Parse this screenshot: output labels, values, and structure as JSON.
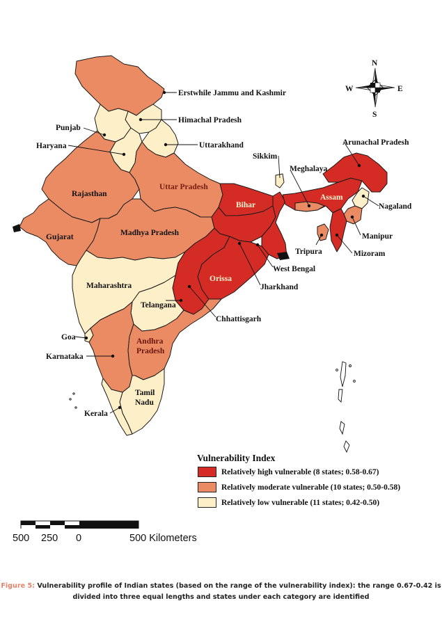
{
  "colors": {
    "high": "#d42b25",
    "moderate": "#ea8b63",
    "low": "#fdefc8",
    "caption_accent": "#e0836a"
  },
  "map": {
    "compass": {
      "n": "N",
      "s": "S",
      "e": "E",
      "w": "W"
    },
    "states": [
      {
        "name": "Erstwhile Jammu and Kashmir",
        "category": "moderate"
      },
      {
        "name": "Himachal Pradesh",
        "category": "low"
      },
      {
        "name": "Punjab",
        "category": "low"
      },
      {
        "name": "Haryana",
        "category": "low"
      },
      {
        "name": "Uttarakhand",
        "category": "low"
      },
      {
        "name": "Rajasthan",
        "category": "moderate"
      },
      {
        "name": "Uttar Pradesh",
        "category": "moderate"
      },
      {
        "name": "Bihar",
        "category": "high"
      },
      {
        "name": "Sikkim",
        "category": "low"
      },
      {
        "name": "Arunachal Pradesh",
        "category": "high"
      },
      {
        "name": "Meghalaya",
        "category": "moderate"
      },
      {
        "name": "Assam",
        "category": "high"
      },
      {
        "name": "Nagaland",
        "category": "low"
      },
      {
        "name": "Manipur",
        "category": "moderate"
      },
      {
        "name": "Mizoram",
        "category": "high"
      },
      {
        "name": "Tripura",
        "category": "moderate"
      },
      {
        "name": "Gujarat",
        "category": "moderate"
      },
      {
        "name": "Madhya Pradesh",
        "category": "moderate"
      },
      {
        "name": "West Bengal",
        "category": "high"
      },
      {
        "name": "Jharkhand",
        "category": "high"
      },
      {
        "name": "Orissa",
        "category": "high"
      },
      {
        "name": "Chhattisgarh",
        "category": "high"
      },
      {
        "name": "Maharashtra",
        "category": "low"
      },
      {
        "name": "Telangana",
        "category": "low"
      },
      {
        "name": "Goa",
        "category": "low"
      },
      {
        "name": "Karnataka",
        "category": "moderate"
      },
      {
        "name": "Andhra Pradesh",
        "category": "moderate"
      },
      {
        "name": "Tamil Nadu",
        "category": "low"
      },
      {
        "name": "Kerala",
        "category": "low"
      }
    ],
    "labels": {
      "jk": "Erstwhile Jammu and Kashmir",
      "hp": "Himachal Pradesh",
      "punjab": "Punjab",
      "haryana": "Haryana",
      "uk": "Uttarakhand",
      "rajasthan": "Rajasthan",
      "up": "Uttar Pradesh",
      "bihar": "Bihar",
      "sikkim": "Sikkim",
      "arunachal": "Arunachal Pradesh",
      "meghalaya": "Meghalaya",
      "assam": "Assam",
      "nagaland": "Nagaland",
      "manipur": "Manipur",
      "mizoram": "Mizoram",
      "tripura": "Tripura",
      "gujarat": "Gujarat",
      "mp": "Madhya Pradesh",
      "wb": "West Bengal",
      "jharkhand": "Jharkhand",
      "orissa": "Orissa",
      "chhattisgarh": "Chhattisgarh",
      "maharashtra": "Maharashtra",
      "telangana": "Telangana",
      "goa": "Goa",
      "karnataka": "Karnataka",
      "ap_line1": "Andhra",
      "ap_line2": "Pradesh",
      "tn_line1": "Tamil",
      "tn_line2": "Nadu",
      "kerala": "Kerala"
    }
  },
  "legend": {
    "title": "Vulnerability Index",
    "items": [
      {
        "label": "Relatively high vulnerable (8 states; 0.58-0.67)",
        "color": "#d42b25"
      },
      {
        "label": "Relatively moderate vulnerable (10 states; 0.50-0.58)",
        "color": "#ea8b63"
      },
      {
        "label": "Relatively low vulnerable (11 states; 0.42-0.50)",
        "color": "#fdefc8"
      }
    ]
  },
  "scale_bar": {
    "tick_500_left": "500",
    "tick_250": "250",
    "tick_0": "0",
    "tick_500_right": "500 Kilometers"
  },
  "caption": {
    "figure_label": "Figure 5:",
    "text": "Vulnerability profile of Indian states (based on the range of the vulnerability index): the range 0.67-0.42 is divided into three equal lengths and states under each category are identified"
  }
}
